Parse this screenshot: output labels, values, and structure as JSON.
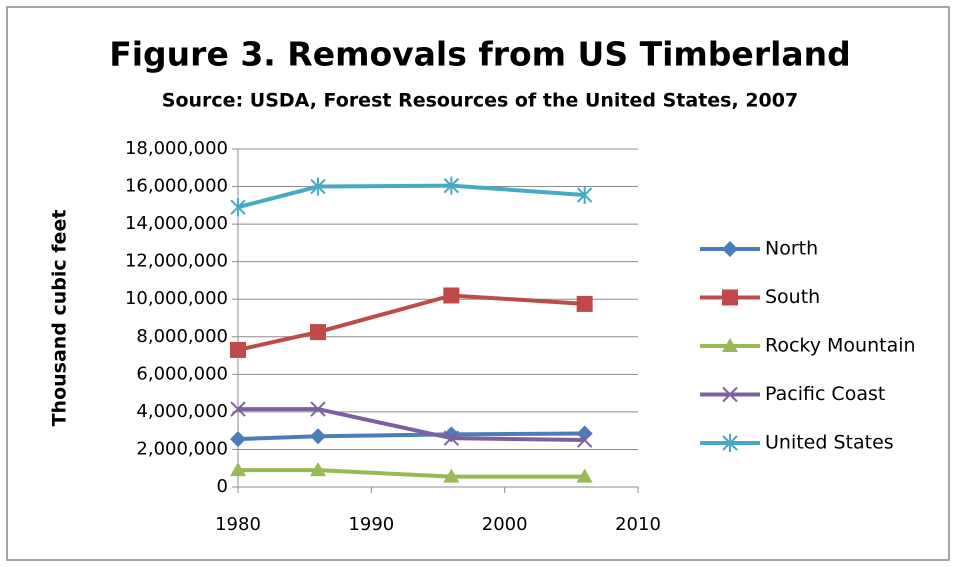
{
  "chart_data": {
    "type": "line",
    "title": "Figure 3. Removals from US Timberland",
    "subtitle": "Source: USDA, Forest Resources of the United States, 2007",
    "ylabel": "Thousand cubic feet",
    "x": [
      1980,
      1986,
      1996,
      2006
    ],
    "series": [
      {
        "name": "North",
        "color": "#4a7ebb",
        "marker": "diamond",
        "values": [
          2550000,
          2700000,
          2800000,
          2850000
        ]
      },
      {
        "name": "South",
        "color": "#be4b48",
        "marker": "square",
        "values": [
          7300000,
          8250000,
          10200000,
          9750000
        ]
      },
      {
        "name": "Rocky Mountain",
        "color": "#98b954",
        "marker": "triangle",
        "values": [
          900000,
          900000,
          550000,
          550000
        ]
      },
      {
        "name": "Pacific Coast",
        "color": "#7d60a0",
        "marker": "x",
        "values": [
          4150000,
          4150000,
          2600000,
          2500000
        ]
      },
      {
        "name": "United States",
        "color": "#46aac5",
        "marker": "star",
        "values": [
          14900000,
          16000000,
          16050000,
          15550000
        ]
      }
    ],
    "xlim": [
      1980,
      2010
    ],
    "xticks": [
      1980,
      1990,
      2000,
      2010
    ],
    "ylim": [
      0,
      18000000
    ],
    "yticks": [
      0,
      {
        "value": 2000000,
        "label": "2,000,000"
      },
      {
        "value": 4000000,
        "label": "4,000,000"
      },
      {
        "value": 6000000,
        "label": "6,000,000"
      },
      {
        "value": 8000000,
        "label": "8,000,000"
      },
      {
        "value": 10000000,
        "label": "10,000,000"
      },
      {
        "value": 12000000,
        "label": "12,000,000"
      },
      {
        "value": 14000000,
        "label": "14,000,000"
      },
      {
        "value": 16000000,
        "label": "16,000,000"
      },
      {
        "value": 18000000,
        "label": "18,000,000"
      }
    ],
    "grid": true,
    "legend": "right"
  }
}
